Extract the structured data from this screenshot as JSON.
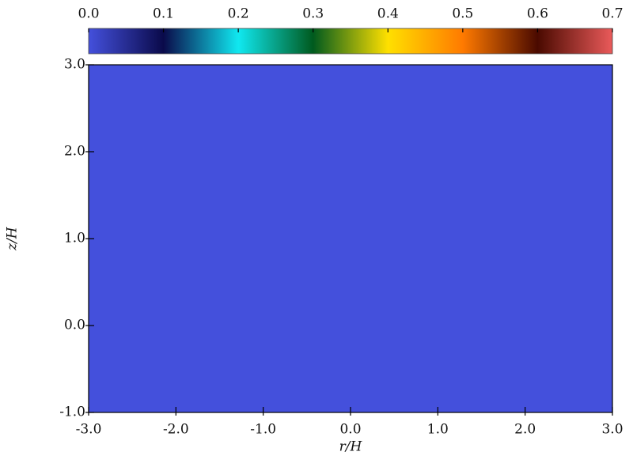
{
  "chart_data": {
    "type": "heatmap",
    "value": 0,
    "xlabel": "r/H",
    "ylabel": "z/H",
    "xlim": [
      -3,
      3
    ],
    "ylim": [
      -1,
      3
    ],
    "xticks": [
      {
        "value": -3,
        "label": "-3.0"
      },
      {
        "value": -2,
        "label": "-2.0"
      },
      {
        "value": -1,
        "label": "-1.0"
      },
      {
        "value": 0,
        "label": "0.0"
      },
      {
        "value": 1,
        "label": "1.0"
      },
      {
        "value": 2,
        "label": "2.0"
      },
      {
        "value": 3,
        "label": "3.0"
      }
    ],
    "yticks": [
      {
        "value": -1,
        "label": "-1.0"
      },
      {
        "value": 0,
        "label": "0.0"
      },
      {
        "value": 1,
        "label": "1.0"
      },
      {
        "value": 2,
        "label": "2.0"
      },
      {
        "value": 3,
        "label": "3.0"
      }
    ],
    "colorbar": {
      "lim": [
        0,
        0.7
      ],
      "ticks": [
        {
          "value": 0,
          "label": "0.0"
        },
        {
          "value": 0.1,
          "label": "0.1"
        },
        {
          "value": 0.2,
          "label": "0.2"
        },
        {
          "value": 0.3,
          "label": "0.3"
        },
        {
          "value": 0.4,
          "label": "0.4"
        },
        {
          "value": 0.5,
          "label": "0.5"
        },
        {
          "value": 0.6,
          "label": "0.6"
        },
        {
          "value": 0.7,
          "label": "0.7"
        }
      ],
      "colormap": [
        {
          "value": 0,
          "color": "#4450dc"
        },
        {
          "value": 0.1,
          "color": "#0a0a4a"
        },
        {
          "value": 0.2,
          "color": "#10e8f0"
        },
        {
          "value": 0.3,
          "color": "#005a1e"
        },
        {
          "value": 0.4,
          "color": "#ffe000"
        },
        {
          "value": 0.5,
          "color": "#ff7a00"
        },
        {
          "value": 0.6,
          "color": "#4a0a00"
        },
        {
          "value": 0.7,
          "color": "#ea5a5a"
        }
      ]
    }
  }
}
